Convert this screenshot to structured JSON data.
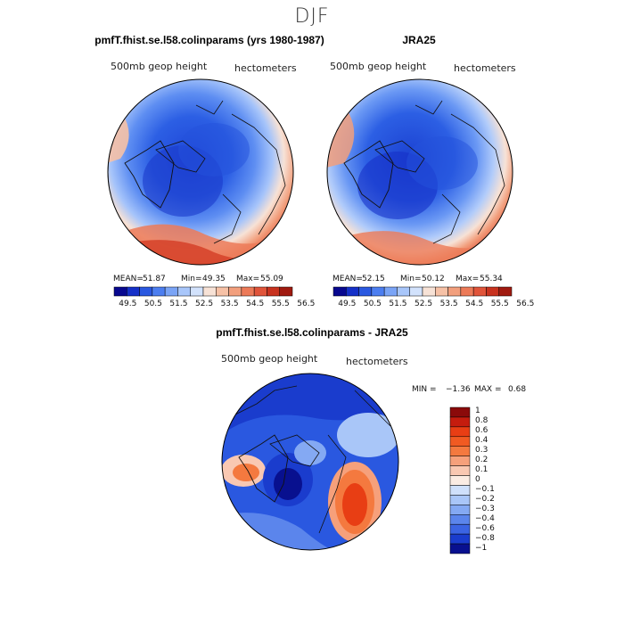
{
  "suptitle": "DJF",
  "panels": [
    {
      "title": "pmfT.fhist.se.l58.colinparams (yrs 1980-1987)",
      "left_label": "500mb geop height",
      "right_label": "hectometers",
      "stats": {
        "mean_label": "MEAN=",
        "mean": "51.87",
        "min_label": "Min=",
        "min": "49.35",
        "max_label": "Max=",
        "max": "55.09"
      }
    },
    {
      "title": "JRA25",
      "left_label": "500mb geop height",
      "right_label": "hectometers",
      "stats": {
        "mean_label": "MEAN=",
        "mean": "52.15",
        "min_label": "Min=",
        "min": "50.12",
        "max_label": "Max=",
        "max": "55.34"
      }
    },
    {
      "title": "pmfT.fhist.se.l58.colinparams - JRA25",
      "left_label": "500mb geop height",
      "right_label": "hectometers",
      "stats": {
        "min_label": "MIN =",
        "min": "−1.36",
        "max_label": "MAX =",
        "max": "0.68"
      }
    }
  ],
  "chart_data": [
    {
      "type": "heatmap",
      "projection": "north-polar-stereographic",
      "title": "pmfT.fhist.se.l58.colinparams (yrs 1980-1987)",
      "variable": "500mb geop height",
      "units": "hectometers",
      "mean": 51.87,
      "min": 49.35,
      "max": 55.09,
      "colorbar_levels": [
        49.5,
        50.0,
        50.5,
        51.0,
        51.5,
        52.0,
        52.5,
        53.0,
        53.5,
        54.0,
        54.5,
        55.0,
        55.5,
        56.0,
        56.5
      ],
      "colorbar_tick_labels": [
        "49.5",
        "50.5",
        "51.5",
        "52.5",
        "53.5",
        "54.5",
        "55.5",
        "56.5"
      ],
      "colorbar_orientation": "horizontal"
    },
    {
      "type": "heatmap",
      "projection": "north-polar-stereographic",
      "title": "JRA25",
      "variable": "500mb geop height",
      "units": "hectometers",
      "mean": 52.15,
      "min": 50.12,
      "max": 55.34,
      "colorbar_levels": [
        49.5,
        50.0,
        50.5,
        51.0,
        51.5,
        52.0,
        52.5,
        53.0,
        53.5,
        54.0,
        54.5,
        55.0,
        55.5,
        56.0,
        56.5
      ],
      "colorbar_tick_labels": [
        "49.5",
        "50.5",
        "51.5",
        "52.5",
        "53.5",
        "54.5",
        "55.5",
        "56.5"
      ],
      "colorbar_orientation": "horizontal"
    },
    {
      "type": "heatmap",
      "projection": "north-polar-stereographic",
      "title": "pmfT.fhist.se.l58.colinparams - JRA25",
      "variable": "500mb geop height",
      "units": "hectometers",
      "min": -1.36,
      "max": 0.68,
      "colorbar_levels": [
        1,
        0.8,
        0.6,
        0.4,
        0.3,
        0.2,
        0.1,
        0,
        -0.1,
        -0.2,
        -0.3,
        -0.4,
        -0.6,
        -0.8,
        -1
      ],
      "colorbar_tick_labels": [
        "1",
        "0.8",
        "0.6",
        "0.4",
        "0.3",
        "0.2",
        "0.1",
        "0",
        "−0.1",
        "−0.2",
        "−0.3",
        "−0.4",
        "−0.6",
        "−0.8",
        "−1"
      ],
      "colorbar_orientation": "vertical"
    }
  ],
  "colors": {
    "abs_scale": [
      "#08088f",
      "#1530c8",
      "#2a58e0",
      "#4c7ef0",
      "#7aa4f6",
      "#a8c6fa",
      "#d2e2fc",
      "#f7e2d6",
      "#f6c1a6",
      "#f29f7d",
      "#ec7a58",
      "#e0543a",
      "#c8321f",
      "#a01a10"
    ],
    "diff_scale": [
      "#8b0a0a",
      "#c51c0e",
      "#e83e14",
      "#f15a22",
      "#f4793f",
      "#f6a07b",
      "#f9c8b2",
      "#fbece3",
      "#cfe0fb",
      "#a9c6f8",
      "#84a9f3",
      "#5b85ec",
      "#3b64e3",
      "#1a3ccd",
      "#08108f"
    ]
  }
}
